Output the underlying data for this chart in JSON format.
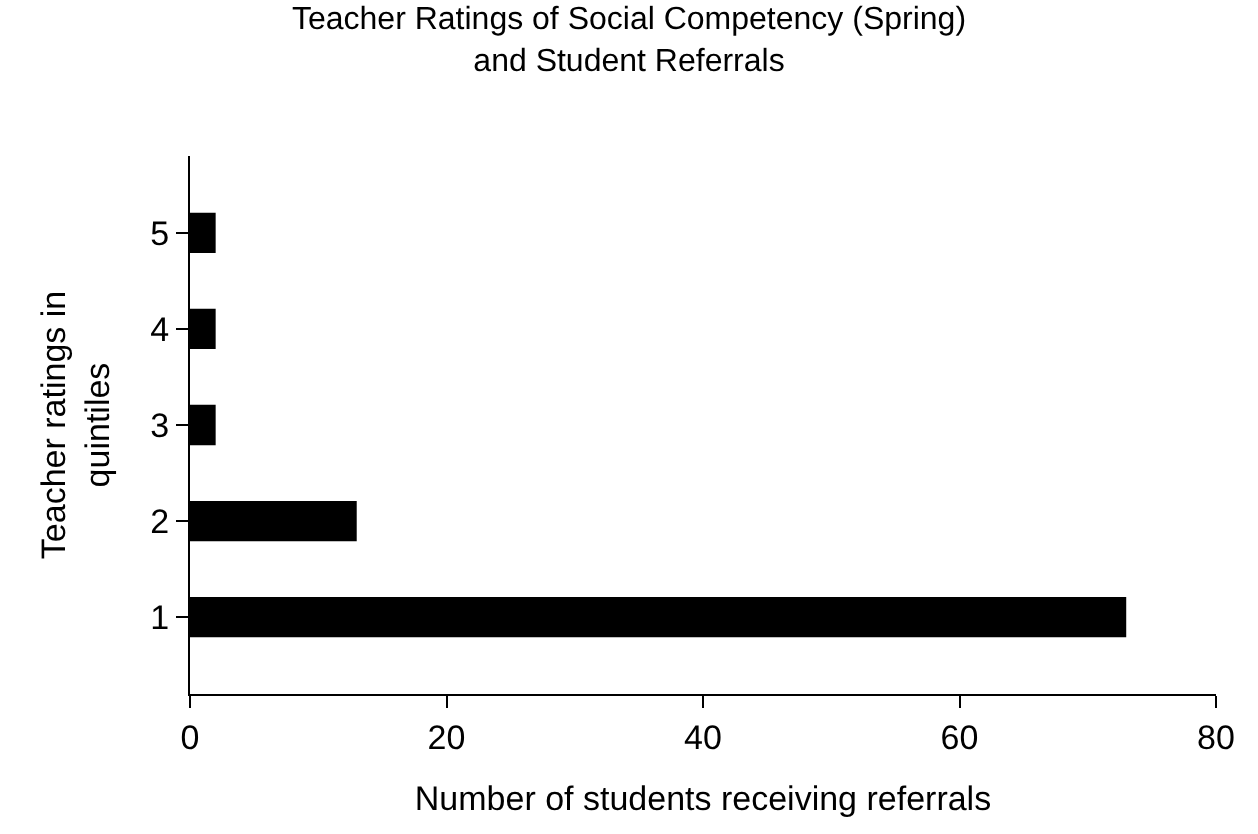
{
  "chart_data": {
    "type": "bar",
    "orientation": "horizontal",
    "title": "Teacher Ratings of Social Competency (Spring)\nand Student Referrals",
    "xlabel": "Number of students receiving referrals",
    "ylabel": "Teacher ratings in\nquintiles",
    "categories": [
      "5",
      "4",
      "3",
      "2",
      "1"
    ],
    "values": [
      2,
      2,
      2,
      13,
      73
    ],
    "color": "#000000",
    "xlim": [
      0,
      80
    ],
    "xticks": [
      0,
      20,
      40,
      60,
      80
    ],
    "legend": false
  }
}
